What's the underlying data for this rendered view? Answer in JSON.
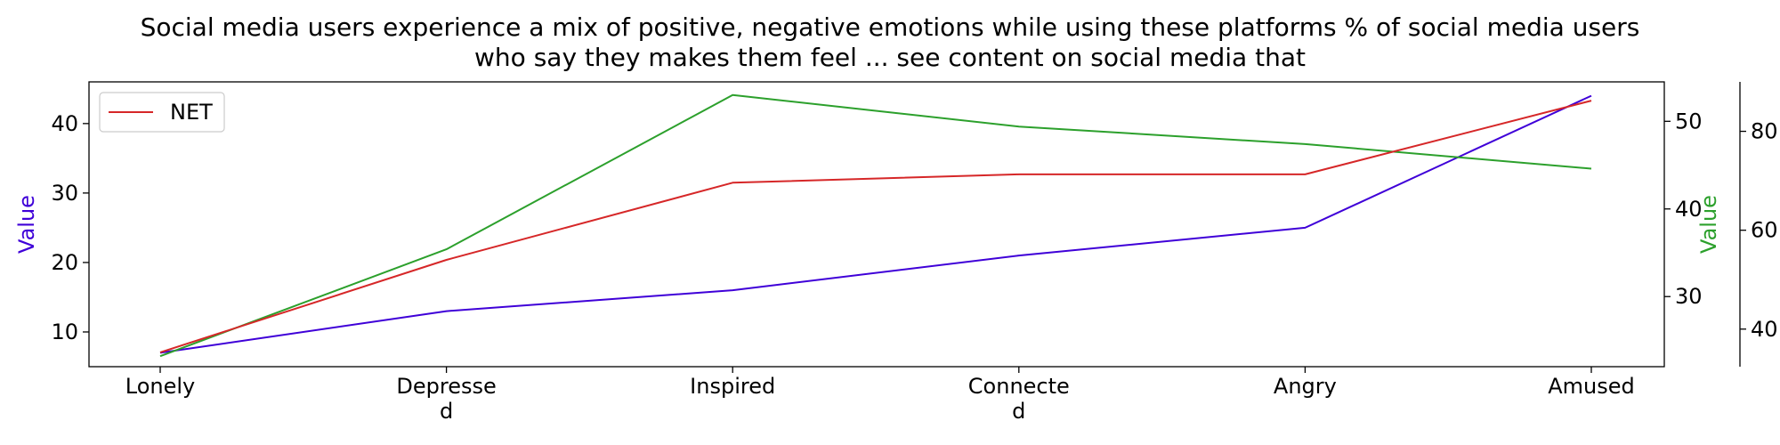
{
  "chart_data": {
    "type": "line",
    "title_lines": [
      "Social media users experience a mix of positive, negative emotions while using these platforms % of social media users",
      "who say they makes them feel ... see content on social media that"
    ],
    "categories": [
      {
        "line1": "Lonely",
        "line2": ""
      },
      {
        "line1": "Depresse",
        "line2": "d"
      },
      {
        "line1": "Inspired",
        "line2": ""
      },
      {
        "line1": "Connecte",
        "line2": "d"
      },
      {
        "line1": "Angry",
        "line2": ""
      },
      {
        "line1": "Amused",
        "line2": ""
      }
    ],
    "axes": {
      "left": {
        "label": "Value",
        "color": "#3f00d8",
        "min": 5,
        "max": 46,
        "ticks": [
          10,
          20,
          30,
          40
        ]
      },
      "right1": {
        "label": "Value",
        "color": "#2ca02c",
        "min": 22.0,
        "max": 54.5,
        "ticks": [
          30,
          40,
          50
        ]
      },
      "right2": {
        "label": "",
        "color": "#000000",
        "min": 32.4,
        "max": 90.0,
        "ticks": [
          40,
          60,
          80
        ]
      }
    },
    "series": [
      {
        "axis": "left",
        "color": "#3f00d8",
        "legend": false,
        "values": [
          7,
          13,
          16,
          21,
          25,
          44
        ]
      },
      {
        "axis": "right1",
        "color": "#2ca02c",
        "legend": false,
        "values": [
          23.2,
          35.4,
          53.0,
          49.4,
          47.4,
          44.6
        ]
      },
      {
        "axis": "right2",
        "color": "#d62728",
        "legend": true,
        "name": "NET",
        "values": [
          35.3,
          54.0,
          69.6,
          71.3,
          71.3,
          86.2
        ]
      }
    ],
    "legend_position": "top-left",
    "grid": false
  }
}
